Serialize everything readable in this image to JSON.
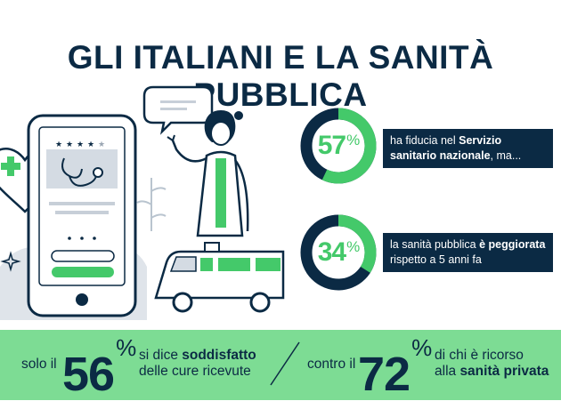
{
  "title": "GLI ITALIANI E LA SANITÀ PUBBLICA",
  "colors": {
    "navy": "#0b2a44",
    "green": "#44c96a",
    "light_green": "#7ddc94"
  },
  "stats": [
    {
      "value": "57",
      "unit": "%",
      "fraction": 0.57,
      "text_before": "ha fiducia nel ",
      "text_bold": "Servizio sanitario nazionale",
      "text_after": ", ma..."
    },
    {
      "value": "34",
      "unit": "%",
      "fraction": 0.34,
      "text_before": "la sanità pubblica ",
      "text_bold": "è peggiorata",
      "text_after": " rispetto a 5 anni fa"
    }
  ],
  "bottom": {
    "left_prefix": "solo il",
    "left_value": "56",
    "left_unit": "%",
    "left_line1_pre": "si dice ",
    "left_line1_bold": "soddisfatto",
    "left_line2": "delle cure ricevute",
    "right_prefix": "contro il",
    "right_value": "72",
    "right_unit": "%",
    "right_line1": "di chi è ricorso",
    "right_line2_pre": "alla ",
    "right_line2_bold": "sanità privata"
  },
  "illustration": {
    "rating_stars": 4,
    "rating_max": 5,
    "icons": [
      "smartphone-icon",
      "stethoscope-icon",
      "heart-cross-icon",
      "doctor-icon",
      "speech-bubble-icon",
      "ambulance-icon"
    ]
  }
}
